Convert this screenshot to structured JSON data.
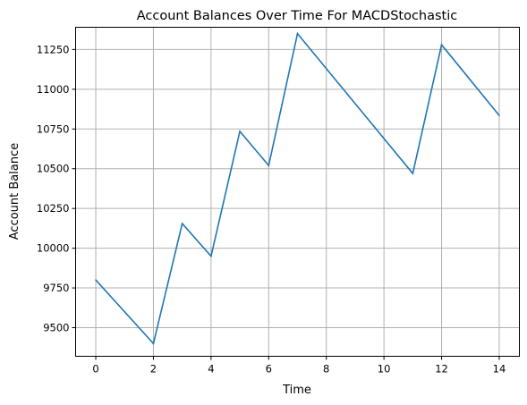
{
  "chart_data": {
    "type": "line",
    "title": "Account Balances Over Time For MACDStochastic",
    "xlabel": "Time",
    "ylabel": "Account Balance",
    "xlim": [
      -0.7,
      14.7
    ],
    "ylim": [
      9320,
      11390
    ],
    "xticks": [
      0,
      2,
      4,
      6,
      8,
      10,
      12,
      14
    ],
    "yticks": [
      9500,
      9750,
      10000,
      10250,
      10500,
      10750,
      11000,
      11250
    ],
    "grid": true,
    "series": [
      {
        "color": "#1f77b4",
        "x": [
          0,
          2,
          3,
          4,
          5,
          6,
          7,
          11,
          12,
          14
        ],
        "y": [
          9800,
          9400,
          10155,
          9950,
          10735,
          10520,
          11350,
          10470,
          11280,
          10835
        ]
      }
    ]
  }
}
